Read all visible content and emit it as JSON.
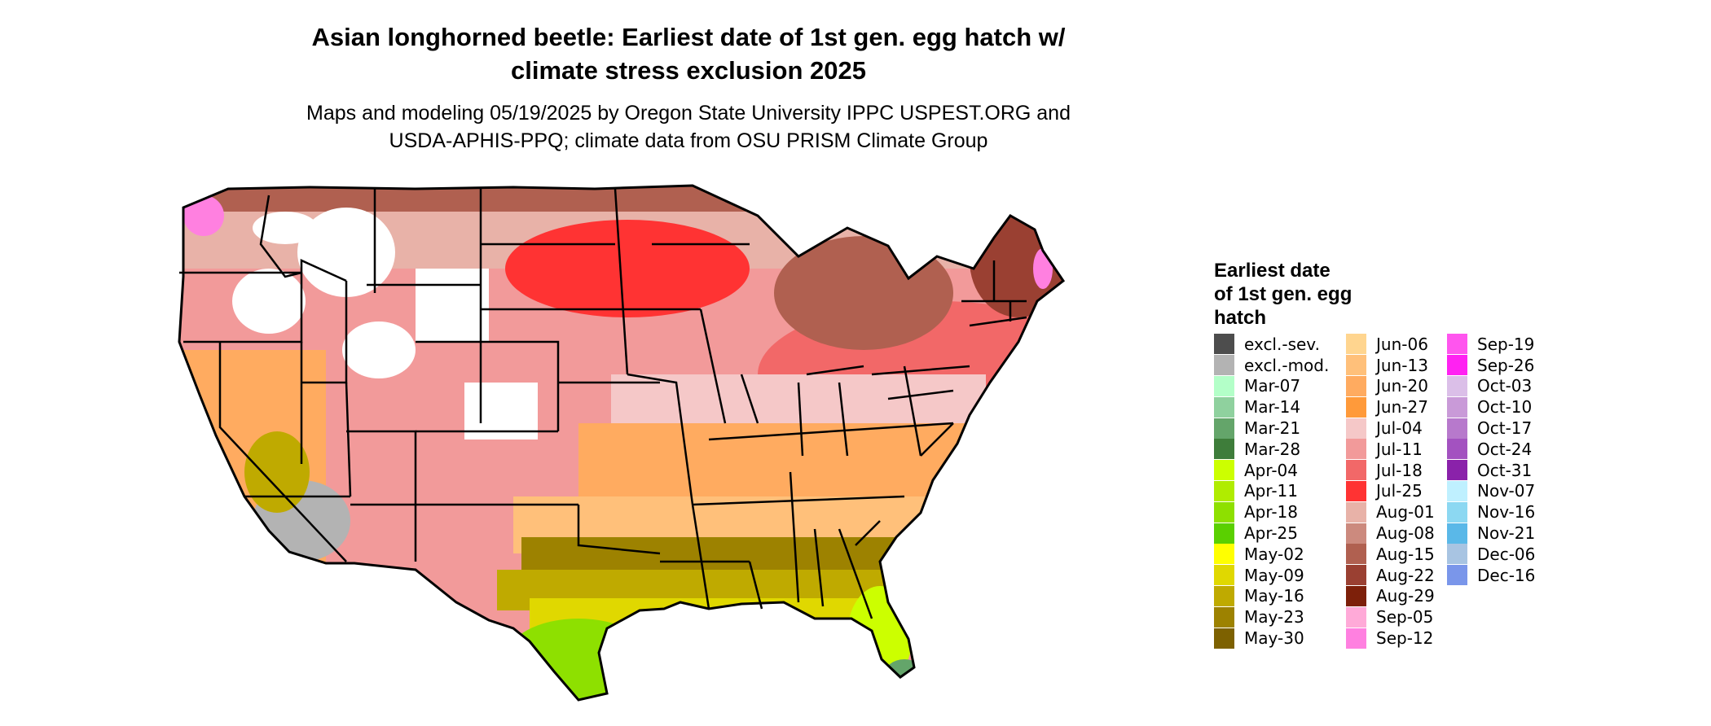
{
  "title": {
    "line1": "Asian longhorned beetle: Earliest date of 1st gen. egg hatch w/",
    "line2": "climate stress exclusion 2025"
  },
  "subtitle": {
    "line1": "Maps and modeling 05/19/2025 by Oregon State University IPPC USPEST.ORG and",
    "line2": "USDA-APHIS-PPQ; climate data from OSU PRISM Climate Group"
  },
  "legend": {
    "title_lines": [
      "Earliest date",
      "of 1st gen. egg",
      "hatch"
    ],
    "columns": [
      [
        {
          "label": "excl.-sev.",
          "color": "#4d4d4d"
        },
        {
          "label": "excl.-mod.",
          "color": "#b3b3b3"
        },
        {
          "label": "Mar-07",
          "color": "#b3ffc8"
        },
        {
          "label": "Mar-14",
          "color": "#8fd19e"
        },
        {
          "label": "Mar-21",
          "color": "#64a56a"
        },
        {
          "label": "Mar-28",
          "color": "#3e7d3a"
        },
        {
          "label": "Apr-04",
          "color": "#ccff00"
        },
        {
          "label": "Apr-11",
          "color": "#b0ec00"
        },
        {
          "label": "Apr-18",
          "color": "#8ee000"
        },
        {
          "label": "Apr-25",
          "color": "#5ad000"
        },
        {
          "label": "May-02",
          "color": "#ffff00"
        },
        {
          "label": "May-09",
          "color": "#e0d800"
        },
        {
          "label": "May-16",
          "color": "#bfaa00"
        },
        {
          "label": "May-23",
          "color": "#9d8200"
        },
        {
          "label": "May-30",
          "color": "#7d6100"
        }
      ],
      [
        {
          "label": "Jun-06",
          "color": "#ffd58f"
        },
        {
          "label": "Jun-13",
          "color": "#ffc07a"
        },
        {
          "label": "Jun-20",
          "color": "#ffab60"
        },
        {
          "label": "Jun-27",
          "color": "#ff9a3a"
        },
        {
          "label": "Jul-04",
          "color": "#f5c8c8"
        },
        {
          "label": "Jul-11",
          "color": "#f29a9a"
        },
        {
          "label": "Jul-18",
          "color": "#f26868"
        },
        {
          "label": "Jul-25",
          "color": "#ff3333"
        },
        {
          "label": "Aug-01",
          "color": "#e8b2a8"
        },
        {
          "label": "Aug-08",
          "color": "#cc8a7e"
        },
        {
          "label": "Aug-15",
          "color": "#b06050"
        },
        {
          "label": "Aug-22",
          "color": "#9a4032"
        },
        {
          "label": "Aug-29",
          "color": "#7d200a"
        },
        {
          "label": "Sep-05",
          "color": "#ffaad8"
        },
        {
          "label": "Sep-12",
          "color": "#ff80e0"
        }
      ],
      [
        {
          "label": "Sep-19",
          "color": "#ff55ee"
        },
        {
          "label": "Sep-26",
          "color": "#ff22f2"
        },
        {
          "label": "Oct-03",
          "color": "#dbbfe8"
        },
        {
          "label": "Oct-10",
          "color": "#c99ad8"
        },
        {
          "label": "Oct-17",
          "color": "#b779cc"
        },
        {
          "label": "Oct-24",
          "color": "#a352c0"
        },
        {
          "label": "Oct-31",
          "color": "#8a22aa"
        },
        {
          "label": "Nov-07",
          "color": "#bff0ff"
        },
        {
          "label": "Nov-16",
          "color": "#8cd8f2"
        },
        {
          "label": "Nov-21",
          "color": "#5ab8e8"
        },
        {
          "label": "Dec-06",
          "color": "#a8c4e2"
        },
        {
          "label": "Dec-16",
          "color": "#7a96ea"
        }
      ]
    ]
  }
}
